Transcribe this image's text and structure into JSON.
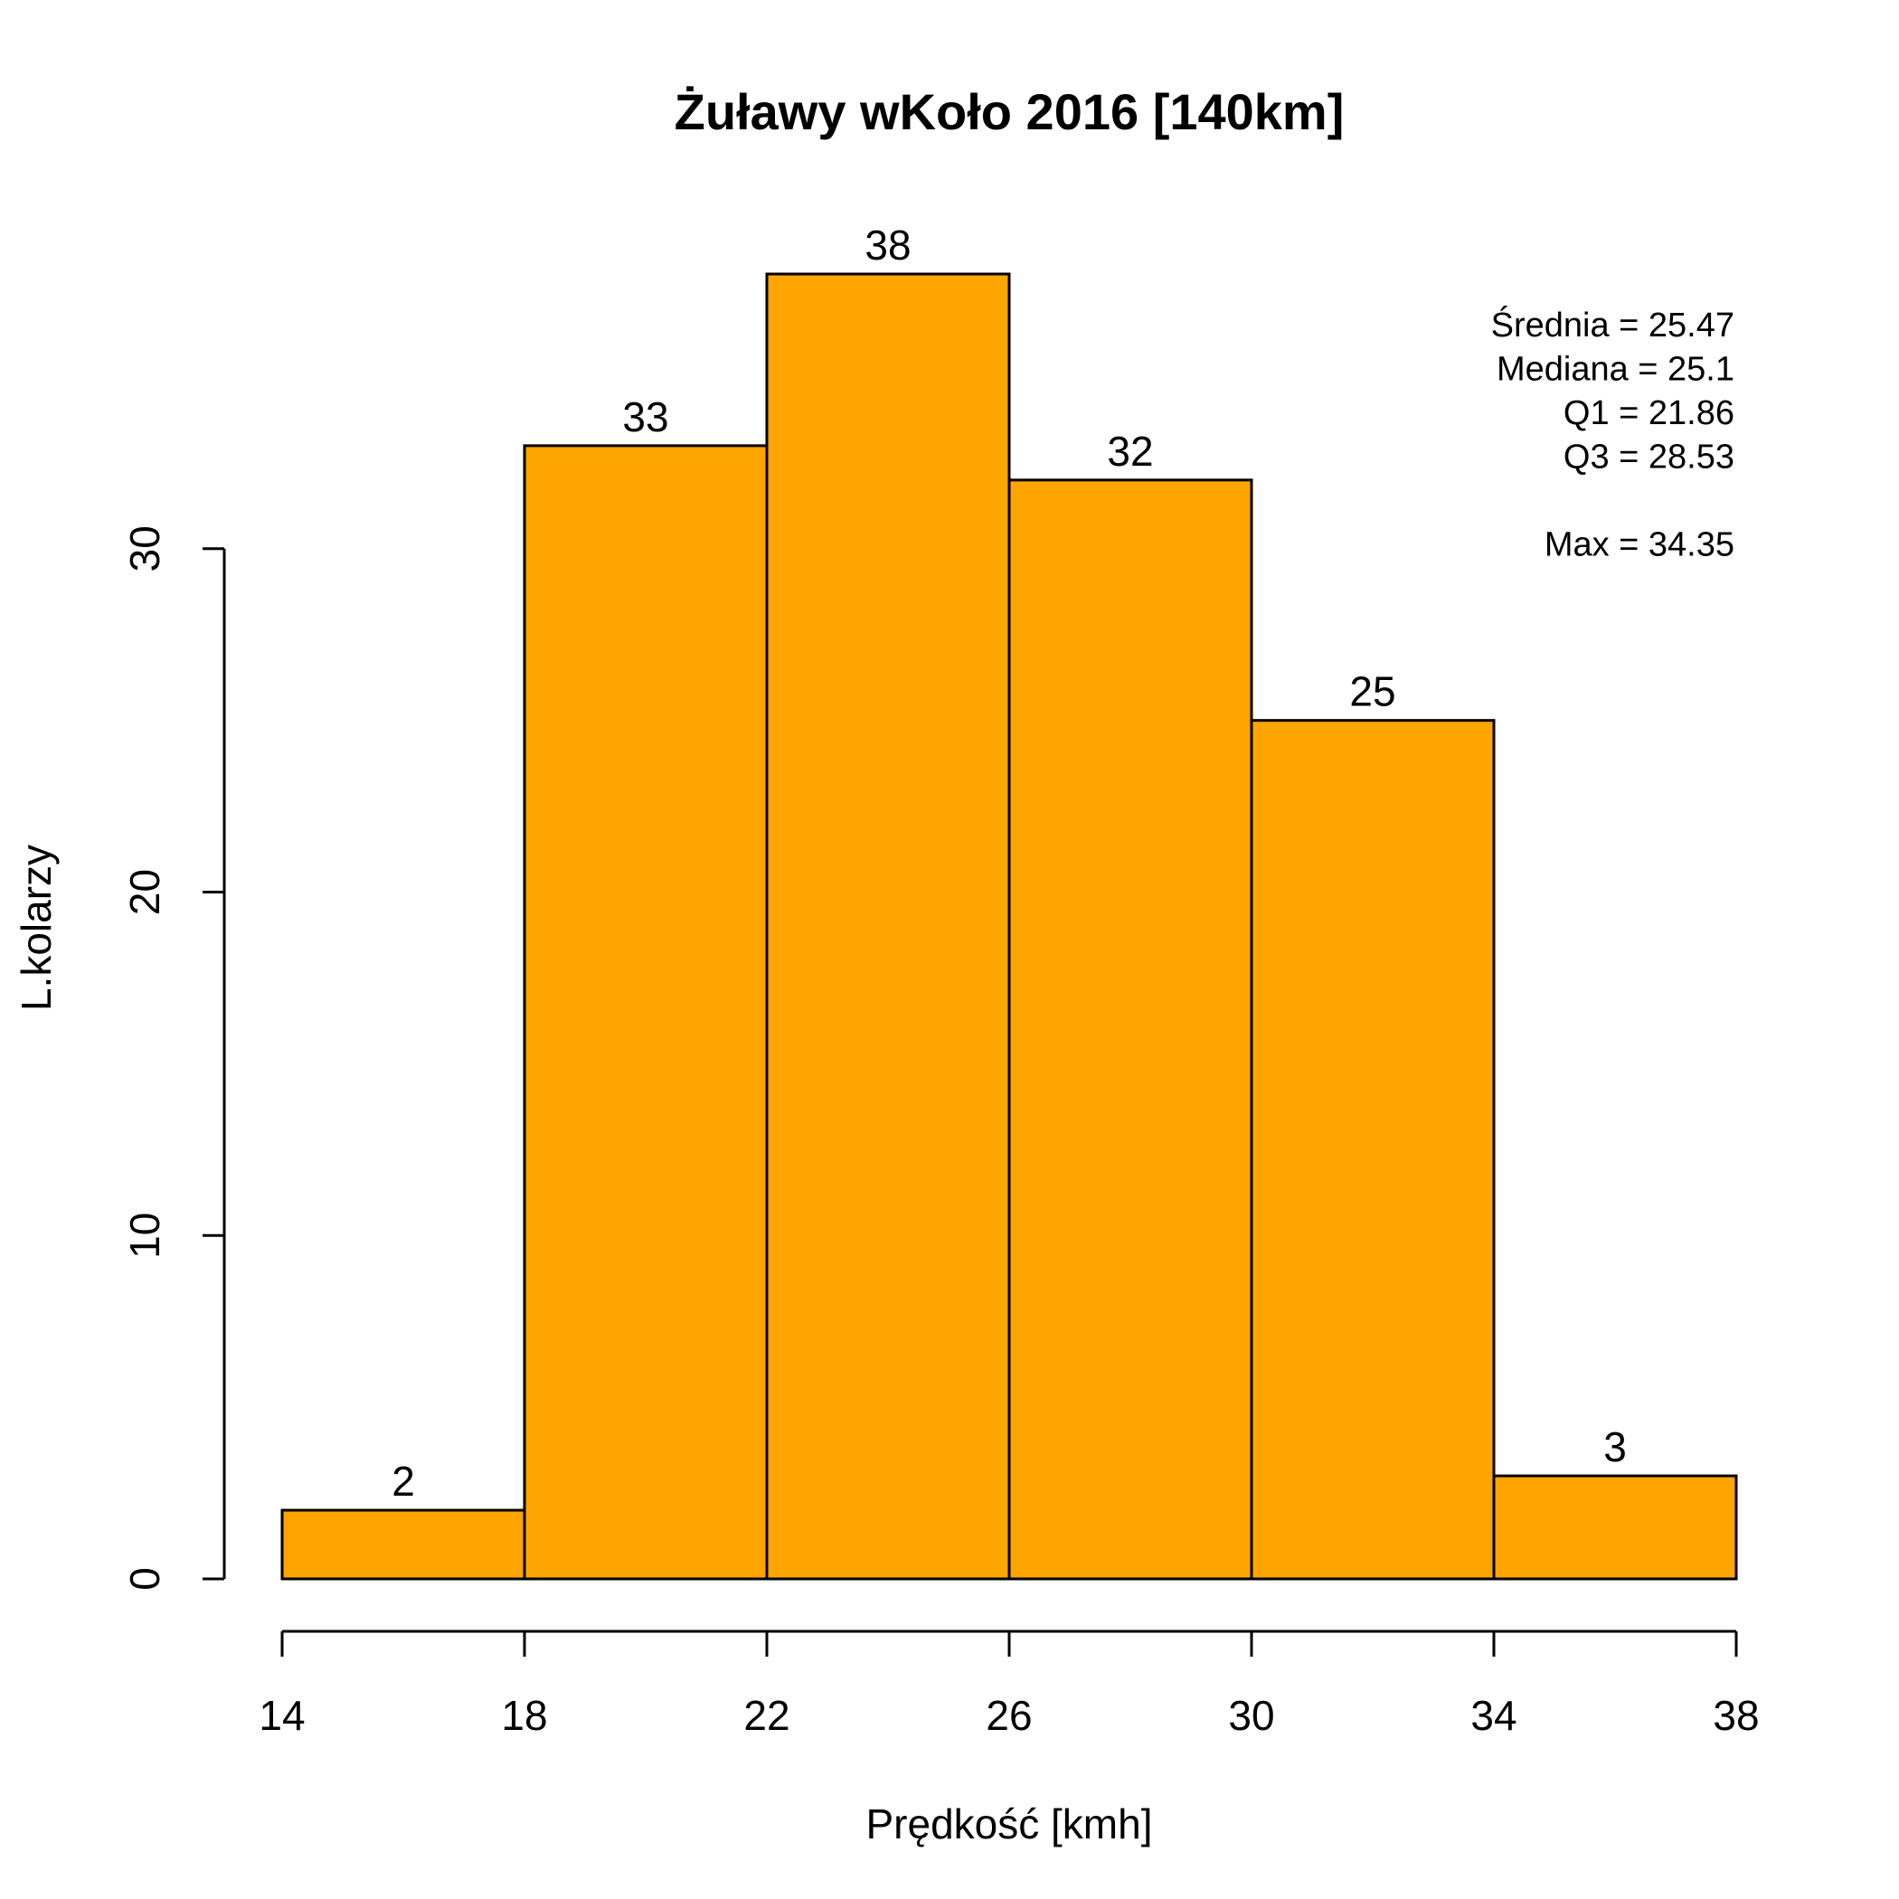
{
  "chart_data": {
    "type": "bar",
    "title": "Żuławy wKoło 2016 [140km]",
    "xlabel": "Prędkość [kmh]",
    "ylabel": "L.kolarzy",
    "bins": [
      {
        "from": 14,
        "to": 18,
        "count": 2
      },
      {
        "from": 18,
        "to": 22,
        "count": 33
      },
      {
        "from": 22,
        "to": 26,
        "count": 38
      },
      {
        "from": 26,
        "to": 30,
        "count": 32
      },
      {
        "from": 30,
        "to": 34,
        "count": 25
      },
      {
        "from": 34,
        "to": 38,
        "count": 3
      }
    ],
    "xlim": [
      14,
      38
    ],
    "ylim": [
      0,
      38
    ],
    "x_ticks": [
      14,
      18,
      22,
      26,
      30,
      34,
      38
    ],
    "y_ticks": [
      0,
      10,
      20,
      30
    ],
    "grid": false,
    "legend": "none",
    "bar_color": "#FFA500",
    "annotations": [
      "Średnia = 25.47",
      "Mediana = 25.1",
      "Q1 = 21.86",
      "Q3 = 28.53",
      "",
      "Max = 34.35"
    ]
  }
}
